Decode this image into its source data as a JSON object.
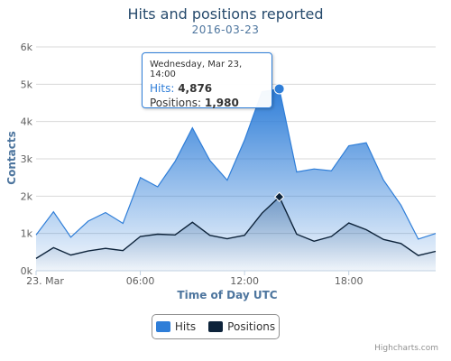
{
  "chart_data": {
    "type": "area",
    "title": "Hits and positions reported",
    "subtitle": "2016-03-23",
    "xlabel": "Time of Day UTC",
    "ylabel": "Contacts",
    "x_ticks": [
      {
        "label": "23. Mar",
        "hour": 0
      },
      {
        "label": "06:00",
        "hour": 6
      },
      {
        "label": "12:00",
        "hour": 12
      },
      {
        "label": "18:00",
        "hour": 18
      }
    ],
    "y_ticks": [
      {
        "label": "0k",
        "value": 0
      },
      {
        "label": "1k",
        "value": 1000
      },
      {
        "label": "2k",
        "value": 2000
      },
      {
        "label": "3k",
        "value": 3000
      },
      {
        "label": "4k",
        "value": 4000
      },
      {
        "label": "5k",
        "value": 5000
      },
      {
        "label": "6k",
        "value": 6000
      }
    ],
    "ylim": [
      0,
      6000
    ],
    "xlim": [
      0,
      23
    ],
    "grid": true,
    "legend_position": "bottom-center",
    "hours": [
      0,
      1,
      2,
      3,
      4,
      5,
      6,
      7,
      8,
      9,
      10,
      11,
      12,
      13,
      14,
      15,
      16,
      17,
      18,
      19,
      20,
      21,
      22,
      23
    ],
    "series": [
      {
        "name": "Hits",
        "color": "#2f7ed8",
        "values": [
          960,
          1580,
          900,
          1330,
          1560,
          1270,
          2500,
          2250,
          2930,
          3830,
          2960,
          2430,
          3500,
          4800,
          4876,
          2650,
          2730,
          2680,
          3350,
          3430,
          2430,
          1760,
          850,
          1000
        ]
      },
      {
        "name": "Positions",
        "color": "#0d233a",
        "values": [
          330,
          620,
          420,
          530,
          600,
          540,
          920,
          980,
          960,
          1300,
          950,
          860,
          950,
          1540,
          1980,
          980,
          790,
          920,
          1280,
          1100,
          840,
          730,
          410,
          520
        ]
      }
    ],
    "tooltip": {
      "date": "Wednesday, Mar 23, 14:00",
      "hour": 14,
      "hits_label": "Hits",
      "hits_value": "4,876",
      "positions_label": "Positions",
      "positions_value": "1,980"
    }
  },
  "credits": "Highcharts.com"
}
